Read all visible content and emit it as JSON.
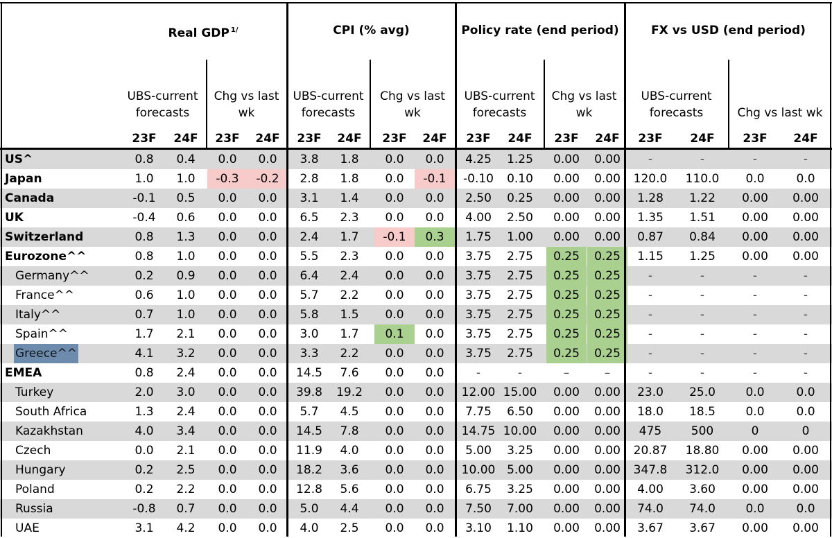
{
  "groups": [
    {
      "key": "gdp",
      "title": "Real GDP",
      "sup": "1/"
    },
    {
      "key": "cpi",
      "title": "CPI (% avg)",
      "sup": ""
    },
    {
      "key": "policy",
      "title": "Policy rate (end period)",
      "sup": ""
    },
    {
      "key": "fx",
      "title": "FX vs USD (end period)",
      "sup": ""
    }
  ],
  "subheaders": {
    "forecast_line1": "UBS-current",
    "forecast_line2": "forecasts",
    "chg_line1": "Chg vs last",
    "chg_line2": "wk",
    "chg_fx": "Chg vs last wk"
  },
  "years": [
    "23F",
    "24F"
  ],
  "rows": [
    {
      "name": "US^",
      "style": "bold",
      "shade": true,
      "values": [
        "0.8",
        "0.4",
        "0.0",
        "0.0",
        "3.8",
        "1.8",
        "0.0",
        "0.0",
        "4.25",
        "1.25",
        "0.00",
        "0.00",
        "-",
        "-",
        "-",
        "-"
      ],
      "fills": {}
    },
    {
      "name": "Japan",
      "style": "bold",
      "shade": false,
      "values": [
        "1.0",
        "1.0",
        "-0.3",
        "-0.2",
        "2.8",
        "1.8",
        "0.0",
        "-0.1",
        "-0.10",
        "0.10",
        "0.00",
        "0.00",
        "120.0",
        "110.0",
        "0.0",
        "0.0"
      ],
      "fills": {
        "2": "red",
        "3": "red",
        "7": "red"
      }
    },
    {
      "name": "Canada",
      "style": "bold",
      "shade": true,
      "values": [
        "-0.1",
        "0.5",
        "0.0",
        "0.0",
        "3.1",
        "1.4",
        "0.0",
        "0.0",
        "2.50",
        "0.25",
        "0.00",
        "0.00",
        "1.28",
        "1.22",
        "0.00",
        "0.00"
      ],
      "fills": {}
    },
    {
      "name": "UK",
      "style": "bold",
      "shade": false,
      "values": [
        "-0.4",
        "0.6",
        "0.0",
        "0.0",
        "6.5",
        "2.3",
        "0.0",
        "0.0",
        "4.00",
        "2.50",
        "0.00",
        "0.00",
        "1.35",
        "1.51",
        "0.00",
        "0.00"
      ],
      "fills": {}
    },
    {
      "name": "Switzerland",
      "style": "bold",
      "shade": true,
      "values": [
        "0.8",
        "1.3",
        "0.0",
        "0.0",
        "2.4",
        "1.7",
        "-0.1",
        "0.3",
        "1.75",
        "1.00",
        "0.00",
        "0.00",
        "0.87",
        "0.84",
        "0.00",
        "0.00"
      ],
      "fills": {
        "6": "red",
        "7": "green"
      }
    },
    {
      "name": "Eurozone^^",
      "style": "bold",
      "shade": false,
      "values": [
        "0.8",
        "1.0",
        "0.0",
        "0.0",
        "5.5",
        "2.3",
        "0.0",
        "0.0",
        "3.75",
        "2.75",
        "0.25",
        "0.25",
        "1.15",
        "1.25",
        "0.00",
        "0.00"
      ],
      "fills": {
        "10": "green",
        "11": "green"
      }
    },
    {
      "name": "Germany^^",
      "style": "sub",
      "shade": true,
      "values": [
        "0.2",
        "0.9",
        "0.0",
        "0.0",
        "6.4",
        "2.4",
        "0.0",
        "0.0",
        "3.75",
        "2.75",
        "0.25",
        "0.25",
        "-",
        "-",
        "-",
        "-"
      ],
      "fills": {
        "10": "green",
        "11": "green"
      }
    },
    {
      "name": "France^^",
      "style": "sub",
      "shade": false,
      "values": [
        "0.6",
        "1.0",
        "0.0",
        "0.0",
        "5.7",
        "2.2",
        "0.0",
        "0.0",
        "3.75",
        "2.75",
        "0.25",
        "0.25",
        "-",
        "-",
        "-",
        "-"
      ],
      "fills": {
        "10": "green",
        "11": "green"
      }
    },
    {
      "name": "Italy^^",
      "style": "sub",
      "shade": true,
      "values": [
        "0.7",
        "1.0",
        "0.0",
        "0.0",
        "5.8",
        "1.5",
        "0.0",
        "0.0",
        "3.75",
        "2.75",
        "0.25",
        "0.25",
        "-",
        "-",
        "-",
        "-"
      ],
      "fills": {
        "10": "green",
        "11": "green"
      }
    },
    {
      "name": "Spain^^",
      "style": "sub",
      "shade": false,
      "values": [
        "1.7",
        "2.1",
        "0.0",
        "0.0",
        "3.0",
        "1.7",
        "0.1",
        "0.0",
        "3.75",
        "2.75",
        "0.25",
        "0.25",
        "-",
        "-",
        "-",
        "-"
      ],
      "fills": {
        "6": "green",
        "10": "green",
        "11": "green"
      }
    },
    {
      "name": "Greece^^",
      "style": "sub",
      "shade": true,
      "highlight": true,
      "values": [
        "4.1",
        "3.2",
        "0.0",
        "0.0",
        "3.3",
        "2.2",
        "0.0",
        "0.0",
        "3.75",
        "2.75",
        "0.25",
        "0.25",
        "-",
        "-",
        "-",
        "-"
      ],
      "fills": {
        "10": "green",
        "11": "green"
      }
    },
    {
      "name": "EMEA",
      "style": "bold",
      "shade": false,
      "values": [
        "0.8",
        "2.4",
        "0.0",
        "0.0",
        "14.5",
        "7.6",
        "0.0",
        "0.0",
        "-",
        "-",
        "–",
        "–",
        "-",
        "-",
        "-",
        "-"
      ],
      "fills": {}
    },
    {
      "name": "Turkey",
      "style": "sub",
      "shade": true,
      "values": [
        "2.0",
        "3.0",
        "0.0",
        "0.0",
        "39.8",
        "19.2",
        "0.0",
        "0.0",
        "12.00",
        "15.00",
        "0.00",
        "0.00",
        "23.0",
        "25.0",
        "0.0",
        "0.0"
      ],
      "fills": {}
    },
    {
      "name": "South Africa",
      "style": "sub",
      "shade": false,
      "values": [
        "1.3",
        "2.4",
        "0.0",
        "0.0",
        "5.7",
        "4.5",
        "0.0",
        "0.0",
        "7.75",
        "6.50",
        "0.00",
        "0.00",
        "18.0",
        "18.5",
        "0.0",
        "0.0"
      ],
      "fills": {}
    },
    {
      "name": "Kazakhstan",
      "style": "sub",
      "shade": true,
      "values": [
        "4.0",
        "3.4",
        "0.0",
        "0.0",
        "14.5",
        "7.8",
        "0.0",
        "0.0",
        "14.75",
        "10.00",
        "0.00",
        "0.00",
        "475",
        "500",
        "0",
        "0"
      ],
      "fills": {}
    },
    {
      "name": "Czech",
      "style": "sub",
      "shade": false,
      "values": [
        "0.0",
        "2.1",
        "0.0",
        "0.0",
        "11.9",
        "4.0",
        "0.0",
        "0.0",
        "5.00",
        "3.25",
        "0.00",
        "0.00",
        "20.87",
        "18.80",
        "0.00",
        "0.00"
      ],
      "fills": {}
    },
    {
      "name": "Hungary",
      "style": "sub",
      "shade": true,
      "values": [
        "0.2",
        "2.5",
        "0.0",
        "0.0",
        "18.2",
        "3.6",
        "0.0",
        "0.0",
        "10.00",
        "5.00",
        "0.00",
        "0.00",
        "347.8",
        "312.0",
        "0.00",
        "0.00"
      ],
      "fills": {}
    },
    {
      "name": "Poland",
      "style": "sub",
      "shade": false,
      "values": [
        "0.2",
        "2.2",
        "0.0",
        "0.0",
        "12.8",
        "5.6",
        "0.0",
        "0.0",
        "6.75",
        "3.25",
        "0.00",
        "0.00",
        "4.00",
        "3.60",
        "0.00",
        "0.00"
      ],
      "fills": {}
    },
    {
      "name": "Russia",
      "style": "sub",
      "shade": true,
      "values": [
        "-0.8",
        "0.7",
        "0.0",
        "0.0",
        "5.0",
        "4.4",
        "0.0",
        "0.0",
        "7.50",
        "7.00",
        "0.00",
        "0.00",
        "74.0",
        "74.0",
        "0.0",
        "0.0"
      ],
      "fills": {}
    },
    {
      "name": "UAE",
      "style": "sub",
      "shade": false,
      "values": [
        "3.1",
        "4.2",
        "0.0",
        "0.0",
        "4.0",
        "2.5",
        "0.0",
        "0.0",
        "3.10",
        "1.10",
        "0.00",
        "0.00",
        "3.67",
        "3.67",
        "0.00",
        "0.00"
      ],
      "fills": {}
    }
  ]
}
